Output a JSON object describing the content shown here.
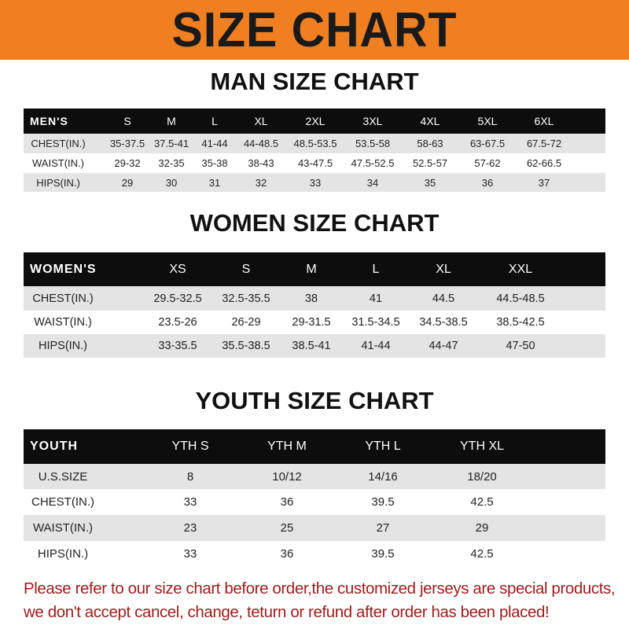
{
  "banner_title": "SIZE CHART",
  "colors": {
    "banner": "#f07f22",
    "header_row": "#0d0d0d",
    "stripe": "#e4e4e4",
    "notice": "#9b1c1c"
  },
  "tables": [
    {
      "title": "MAN SIZE CHART",
      "header": [
        "MEN'S",
        "S",
        "M",
        "L",
        "XL",
        "2XL",
        "3XL",
        "4XL",
        "5XL",
        "6XL"
      ],
      "rows": [
        [
          "CHEST(IN.)",
          "35-37.5",
          "37.5-41",
          "41-44",
          "44-48.5",
          "48.5-53.5",
          "53.5-58",
          "58-63",
          "63-67.5",
          "67.5-72"
        ],
        [
          "WAIST(IN.)",
          "29-32",
          "32-35",
          "35-38",
          "38-43",
          "43-47.5",
          "47.5-52.5",
          "52.5-57",
          "57-62",
          "62-66.5"
        ],
        [
          "HIPS(IN.)",
          "29",
          "30",
          "31",
          "32",
          "33",
          "34",
          "35",
          "36",
          "37"
        ]
      ]
    },
    {
      "title": "WOMEN SIZE CHART",
      "header": [
        "WOMEN'S",
        "XS",
        "S",
        "M",
        "L",
        "XL",
        "XXL"
      ],
      "rows": [
        [
          "CHEST(IN.)",
          "29.5-32.5",
          "32.5-35.5",
          "38",
          "41",
          "44.5",
          "44.5-48.5"
        ],
        [
          "WAIST(IN.)",
          "23.5-26",
          "26-29",
          "29-31.5",
          "31.5-34.5",
          "34.5-38.5",
          "38.5-42.5"
        ],
        [
          "HIPS(IN.)",
          "33-35.5",
          "35.5-38.5",
          "38.5-41",
          "41-44",
          "44-47",
          "47-50"
        ]
      ]
    },
    {
      "title": "YOUTH SIZE CHART",
      "header": [
        "YOUTH",
        "YTH S",
        "YTH M",
        "YTH L",
        "YTH XL"
      ],
      "rows": [
        [
          "U.S.SIZE",
          "8",
          "10/12",
          "14/16",
          "18/20"
        ],
        [
          "CHEST(IN.)",
          "33",
          "36",
          "39.5",
          "42.5"
        ],
        [
          "WAIST(IN.)",
          "23",
          "25",
          "27",
          "29"
        ],
        [
          "HIPS(IN.)",
          "33",
          "36",
          "39.5",
          "42.5"
        ]
      ]
    }
  ],
  "notice": [
    "Please refer to our size chart before order,the customized jerseys are special products,",
    "we don't accept cancel, change, teturn or refund after order has been placed!"
  ]
}
